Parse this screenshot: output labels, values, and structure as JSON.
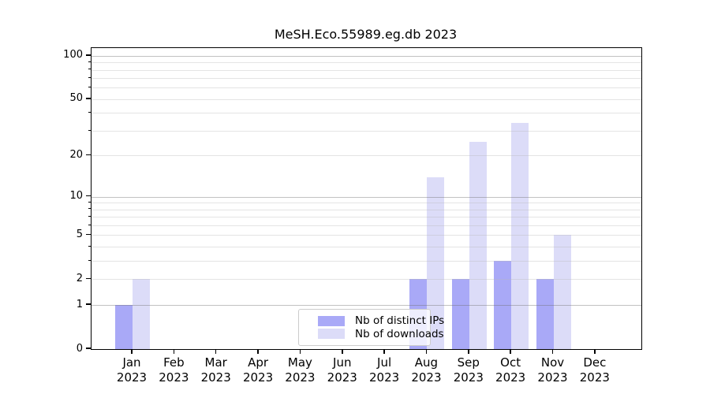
{
  "chart_data": {
    "type": "bar",
    "title": "MeSH.Eco.55989.eg.db 2023",
    "year_label": "2023",
    "categories": [
      "Jan",
      "Feb",
      "Mar",
      "Apr",
      "May",
      "Jun",
      "Jul",
      "Aug",
      "Sep",
      "Oct",
      "Nov",
      "Dec"
    ],
    "series": [
      {
        "name": "Nb of distinct IPs",
        "color": "#a9a9f7",
        "values": [
          1,
          0,
          0,
          0,
          0,
          0,
          0,
          2,
          2,
          3,
          2,
          0
        ]
      },
      {
        "name": "Nb of downloads",
        "color": "#dcdcf8",
        "values": [
          2,
          0,
          0,
          0,
          0,
          0,
          0,
          14,
          25,
          34,
          5,
          0
        ]
      }
    ],
    "yscale": "log1p",
    "ylim": [
      0,
      113
    ],
    "ytick_labels": [
      0,
      1,
      2,
      5,
      10,
      20,
      50,
      100
    ],
    "major_gridlines": [
      1,
      10,
      100
    ],
    "minor_gridlines": [
      2,
      3,
      4,
      5,
      6,
      7,
      8,
      9,
      20,
      30,
      40,
      50,
      60,
      70,
      80,
      90
    ],
    "grid": "on",
    "legend_position": "lower center",
    "xlabel": "",
    "ylabel": ""
  },
  "colors": {
    "axis": "#000000",
    "background": "#ffffff",
    "legend_border": "#cccccc"
  }
}
